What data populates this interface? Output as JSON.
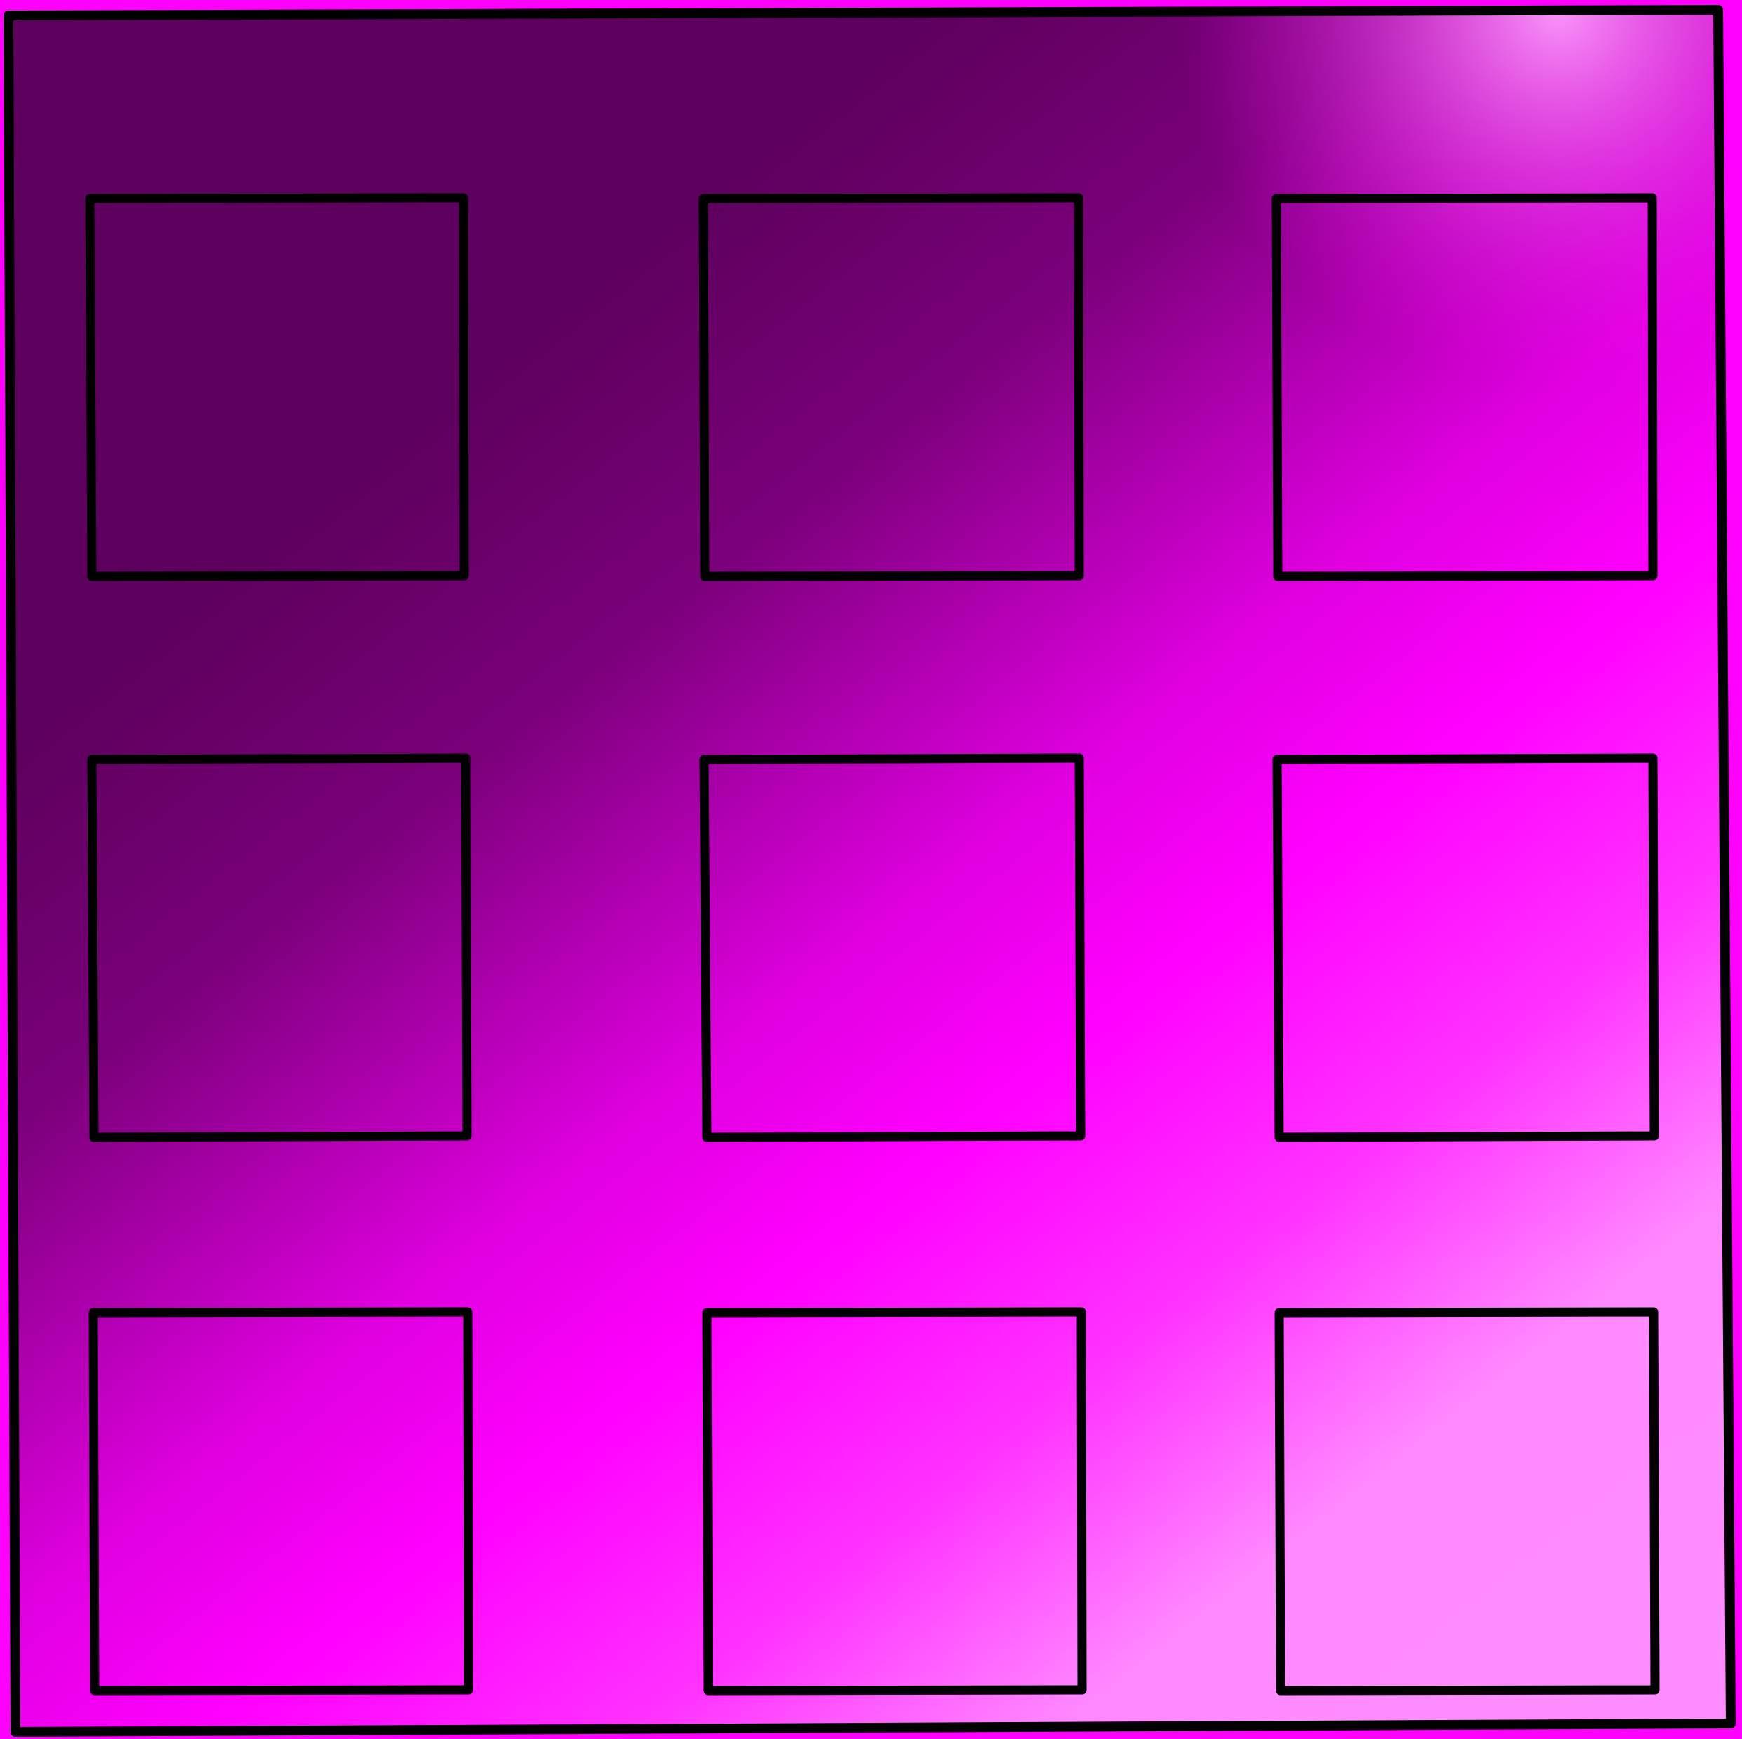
{
  "colors": {
    "outline": "#000000",
    "gradient_dark": "#5e005e",
    "gradient_mid": "#ff00ff",
    "gradient_light": "#ff88ff"
  },
  "grid": {
    "rows": 3,
    "columns": 3
  }
}
